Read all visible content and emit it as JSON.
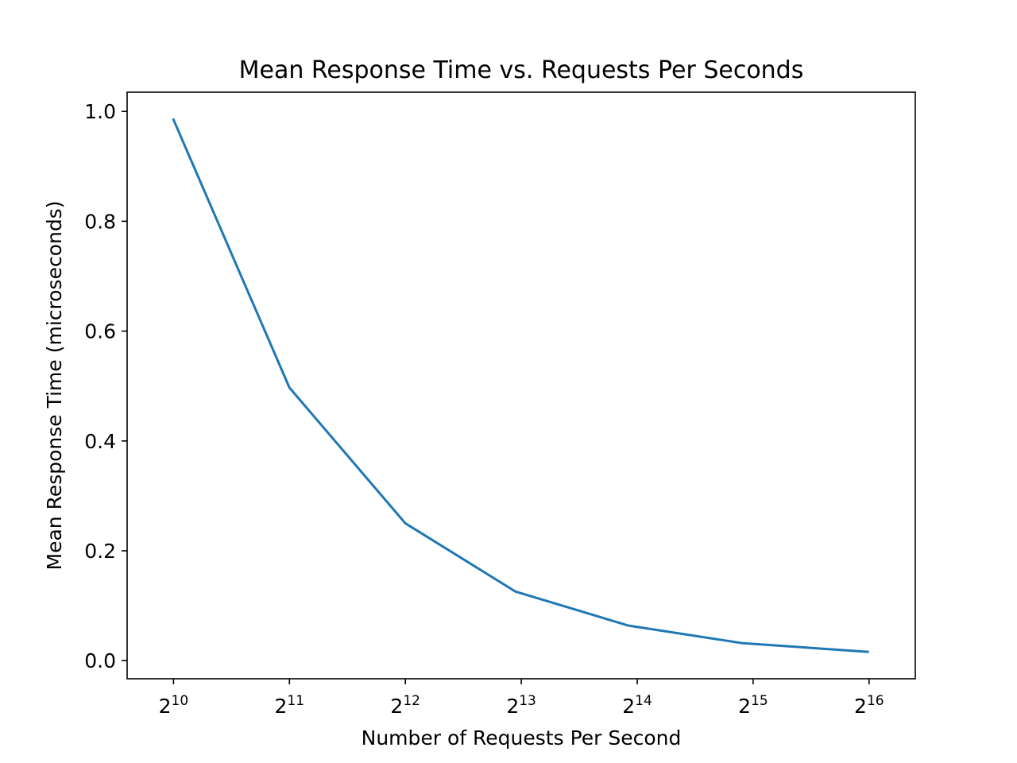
{
  "chart_data": {
    "type": "line",
    "title": "Mean Response Time vs. Requests Per Seconds",
    "xlabel": "Number of Requests Per Second",
    "ylabel": "Mean Response Time (microseconds)",
    "x_scale": "log2",
    "x_ticks": [
      {
        "value": 1024,
        "base": "2",
        "exp": "10"
      },
      {
        "value": 2048,
        "base": "2",
        "exp": "11"
      },
      {
        "value": 4096,
        "base": "2",
        "exp": "12"
      },
      {
        "value": 8192,
        "base": "2",
        "exp": "13"
      },
      {
        "value": 16384,
        "base": "2",
        "exp": "14"
      },
      {
        "value": 32768,
        "base": "2",
        "exp": "15"
      },
      {
        "value": 65536,
        "base": "2",
        "exp": "16"
      }
    ],
    "y_ticks": [
      "0.0",
      "0.2",
      "0.4",
      "0.6",
      "0.8",
      "1.0"
    ],
    "xlim": [
      776,
      86400
    ],
    "ylim": [
      -0.033,
      1.035
    ],
    "grid": false,
    "series": [
      {
        "color": "#1f77b4",
        "x": [
          1024,
          2048,
          4096,
          7900,
          15500,
          30600,
          65000
        ],
        "y": [
          0.985,
          0.497,
          0.25,
          0.126,
          0.064,
          0.032,
          0.016
        ]
      }
    ]
  }
}
